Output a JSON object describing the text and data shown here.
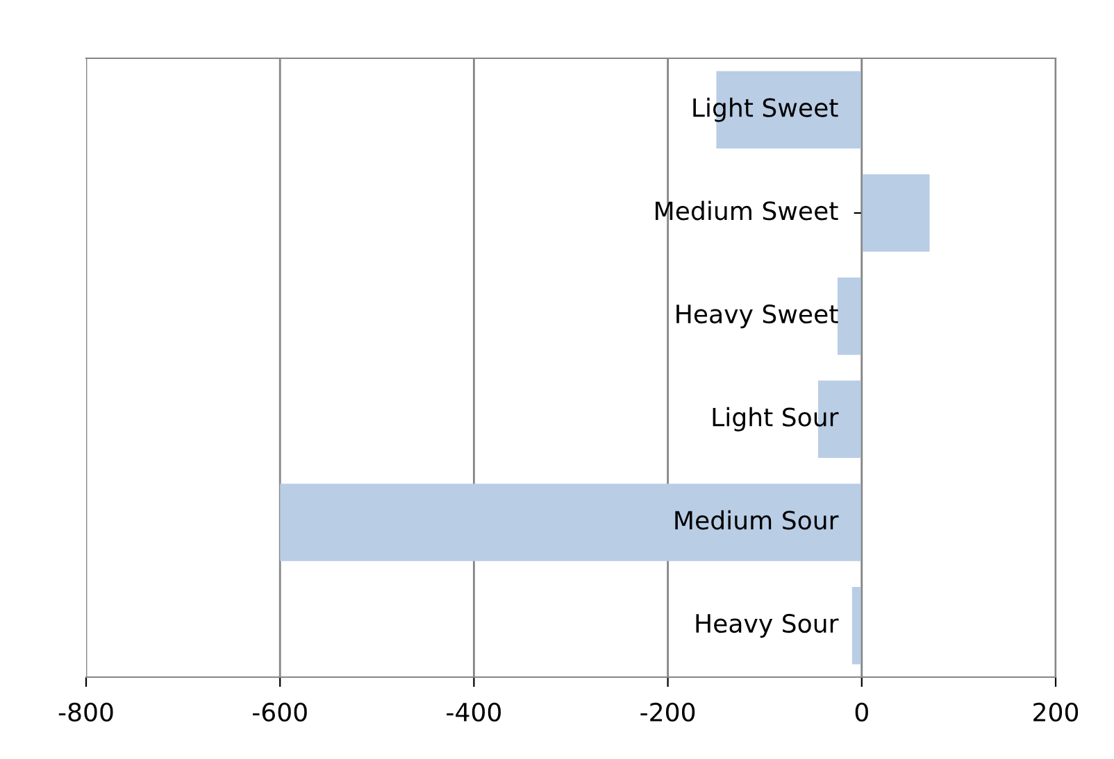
{
  "chart_data": {
    "type": "bar",
    "orientation": "horizontal",
    "categories": [
      "Light Sweet",
      "Medium Sweet",
      "Heavy Sweet",
      "Light Sour",
      "Medium Sour",
      "Heavy Sour"
    ],
    "values": [
      -150,
      70,
      -25,
      -45,
      -600,
      -10
    ],
    "color": "#b9cde5",
    "xlim": [
      -800,
      200
    ],
    "xticks": [
      -800,
      -600,
      -400,
      -200,
      0,
      200
    ],
    "grid": "x"
  }
}
